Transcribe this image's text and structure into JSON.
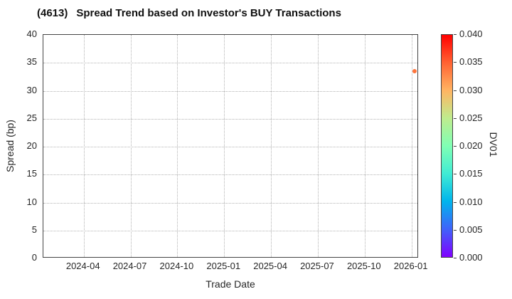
{
  "title": {
    "code": "(4613)",
    "text": "Spread Trend based on Investor's BUY Transactions"
  },
  "chart_data": {
    "type": "scatter",
    "title": "(4613) Spread Trend based on Investor's BUY Transactions",
    "xlabel": "Trade Date",
    "ylabel": "Spread (bp)",
    "ylim": [
      0,
      40
    ],
    "y_ticks": [
      0,
      5,
      10,
      15,
      20,
      25,
      30,
      35,
      40
    ],
    "x_tick_labels": [
      "2024-04",
      "2024-07",
      "2024-10",
      "2025-01",
      "2025-04",
      "2025-07",
      "2025-10",
      "2026-01"
    ],
    "grid": "dotted, both axes",
    "legend_position": "colorbar-right",
    "points": [
      {
        "trade_date": "2026-01",
        "spread_bp": 33.5,
        "dv01": 0.034,
        "color": "#ff743b",
        "x_frac": 0.988
      }
    ],
    "colorbar": {
      "label": "DV01",
      "min": 0.0,
      "max": 0.04,
      "tick_labels_top_to_bottom": [
        "0.040",
        "0.035",
        "0.030",
        "0.025",
        "0.020",
        "0.015",
        "0.010",
        "0.005",
        "0.000"
      ],
      "gradient_stops_bottom_to_top": [
        "#8000ff",
        "#4062fa",
        "#00b4ec",
        "#40ecd4",
        "#80ffb4",
        "#bfec8e",
        "#ffb462",
        "#ff6232",
        "#ff0000"
      ]
    },
    "colors": {
      "spine": "#444444",
      "grid": "#b3b3b3",
      "tick_text": "#262626",
      "title_text": "#111111",
      "background": "#ffffff"
    }
  }
}
